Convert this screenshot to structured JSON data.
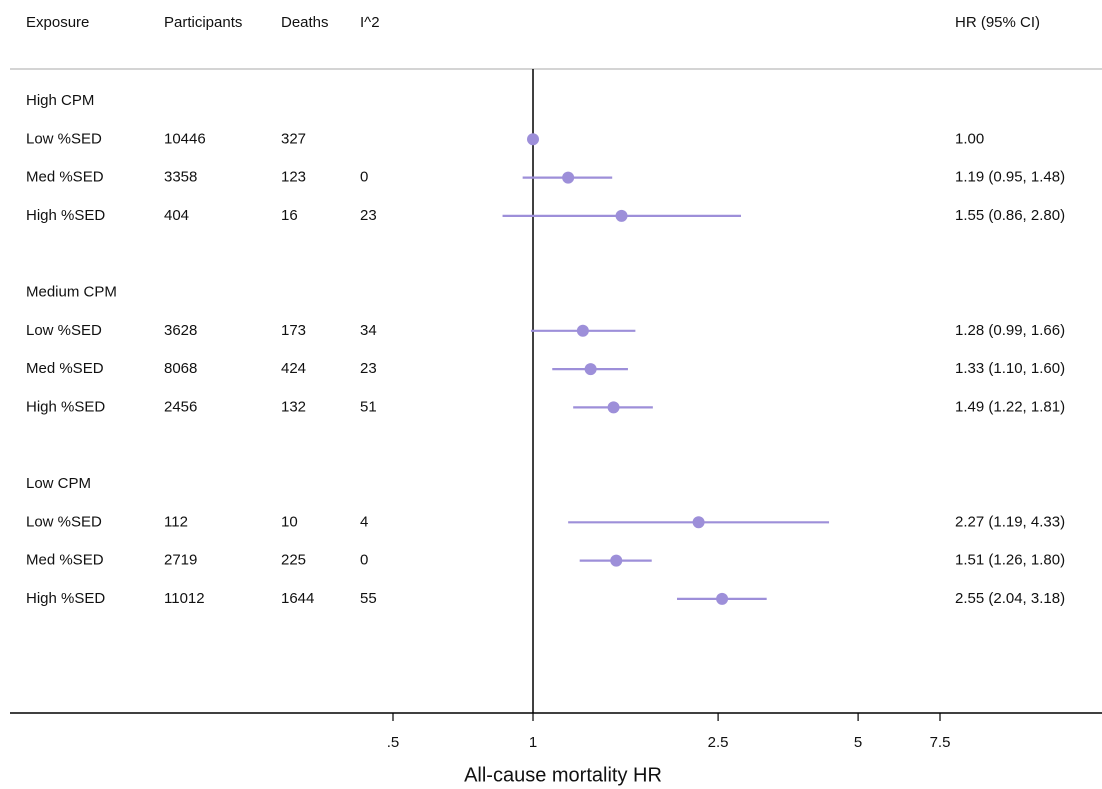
{
  "chart_data": {
    "type": "forest",
    "columns": [
      "Exposure",
      "Participants",
      "Deaths",
      "I^2",
      "HR (95% CI)"
    ],
    "xlabel": "All-cause mortality HR",
    "xscale": "log",
    "xlim": [
      0.5,
      7.5
    ],
    "xticks": [
      {
        "value": 0.5,
        "label": ".5"
      },
      1,
      2.5,
      5,
      7.5
    ],
    "reference_line": 1,
    "color": "#9d8fd9",
    "groups": [
      {
        "name": "High CPM",
        "categories": [
          "Low %SED",
          "Med %SED",
          "High %SED"
        ],
        "participants": [
          10446,
          3358,
          404
        ],
        "deaths": [
          327,
          123,
          16
        ],
        "i2": [
          null,
          0,
          23
        ],
        "values": [
          1,
          1.19,
          1.55
        ],
        "lower": [
          null,
          0.95,
          0.86
        ],
        "upper": [
          null,
          1.48,
          2.8
        ],
        "value_labels": [
          "1.00",
          "1.19 (0.95, 1.48)",
          "1.55 (0.86, 2.80)"
        ]
      },
      {
        "name": "Medium CPM",
        "categories": [
          "Low %SED",
          "Med %SED",
          "High %SED"
        ],
        "participants": [
          3628,
          8068,
          2456
        ],
        "deaths": [
          173,
          424,
          132
        ],
        "i2": [
          34,
          23,
          51
        ],
        "values": [
          1.28,
          1.33,
          1.49
        ],
        "lower": [
          0.99,
          1.1,
          1.22
        ],
        "upper": [
          1.66,
          1.6,
          1.81
        ],
        "value_labels": [
          "1.28 (0.99, 1.66)",
          "1.33 (1.10, 1.60)",
          "1.49 (1.22, 1.81)"
        ]
      },
      {
        "name": "Low CPM",
        "categories": [
          "Low %SED",
          "Med %SED",
          "High %SED"
        ],
        "participants": [
          112,
          2719,
          11012
        ],
        "deaths": [
          10,
          225,
          1644
        ],
        "i2": [
          4,
          0,
          55
        ],
        "values": [
          2.27,
          1.51,
          2.55
        ],
        "lower": [
          1.19,
          1.26,
          2.04
        ],
        "upper": [
          4.33,
          1.8,
          3.18
        ],
        "value_labels": [
          "2.27 (1.19, 4.33)",
          "1.51 (1.26, 1.80)",
          "2.55 (2.04, 3.18)"
        ]
      }
    ]
  }
}
